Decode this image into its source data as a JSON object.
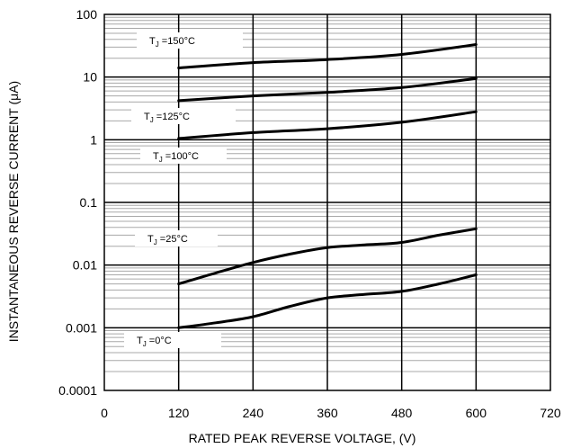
{
  "chart_data": {
    "type": "line",
    "title": "",
    "xlabel": "RATED PEAK REVERSE VOLTAGE, (V)",
    "ylabel": "INSTANTANEOUS REVERSE CURRENT (μA)",
    "xlim": [
      0,
      720
    ],
    "ylim": [
      0.0001,
      100
    ],
    "yscale": "log",
    "grid": true,
    "x_ticks": [
      "0",
      "120",
      "240",
      "360",
      "480",
      "600",
      "720"
    ],
    "y_ticks": [
      "100",
      "10",
      "1",
      "0.1",
      "0.01",
      "0.001",
      "0.0001"
    ],
    "series": [
      {
        "name": "T_J =150°C",
        "label_sub": "J",
        "label_rest": " =150°C",
        "x": [
          120,
          240,
          360,
          480,
          600
        ],
        "y": [
          14,
          17,
          19,
          23,
          33
        ]
      },
      {
        "name": "T_J =125°C",
        "label_sub": "J",
        "label_rest": " =125°C",
        "x": [
          120,
          240,
          360,
          480,
          600
        ],
        "y": [
          4.2,
          5.0,
          5.7,
          6.8,
          9.5
        ]
      },
      {
        "name": "T_J =100°C",
        "label_sub": "J",
        "label_rest": " =100°C",
        "x": [
          120,
          240,
          360,
          480,
          600
        ],
        "y": [
          1.05,
          1.3,
          1.5,
          1.9,
          2.8
        ]
      },
      {
        "name": "T_J =25°C",
        "label_sub": "J",
        "label_rest": " =25°C",
        "x": [
          120,
          180,
          240,
          300,
          360,
          420,
          480,
          540,
          600
        ],
        "y": [
          0.005,
          0.0075,
          0.011,
          0.015,
          0.019,
          0.021,
          0.023,
          0.03,
          0.038
        ]
      },
      {
        "name": "T_J =0°C",
        "label_sub": "J",
        "label_rest": " =0°C",
        "x": [
          120,
          180,
          240,
          300,
          360,
          420,
          480,
          540,
          600
        ],
        "y": [
          0.001,
          0.0012,
          0.0015,
          0.0022,
          0.003,
          0.0034,
          0.0038,
          0.005,
          0.007
        ]
      }
    ]
  }
}
